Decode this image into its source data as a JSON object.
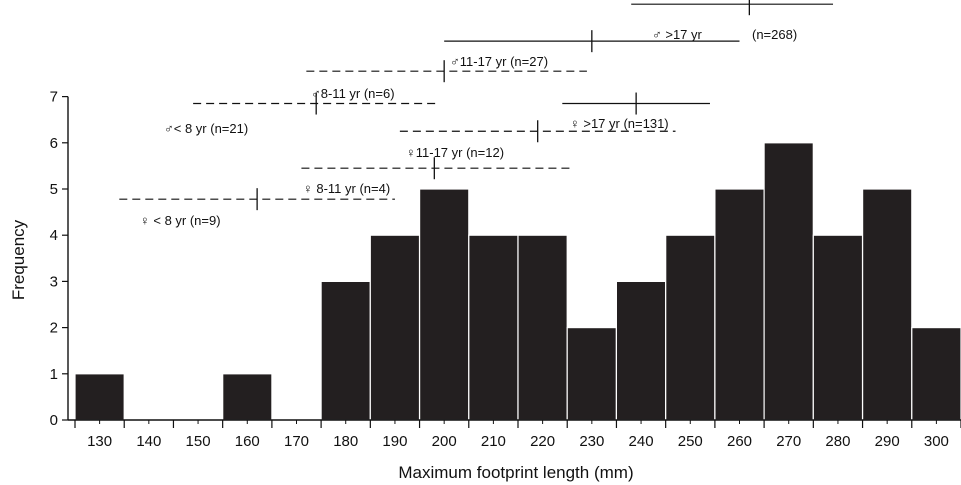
{
  "chart_data": {
    "type": "bar",
    "xlabel": "Maximum footprint length (mm)",
    "ylabel": "Frequency",
    "ylim": [
      0,
      7
    ],
    "xlim": [
      125,
      305
    ],
    "bin_width": 10,
    "x_ticks": [
      130,
      140,
      150,
      160,
      170,
      180,
      190,
      200,
      210,
      220,
      230,
      240,
      250,
      260,
      270,
      280,
      290,
      300
    ],
    "y_ticks": [
      0,
      1,
      2,
      3,
      4,
      5,
      6,
      7
    ],
    "categories": [
      "130",
      "140",
      "150",
      "160",
      "170",
      "180",
      "190",
      "200",
      "210",
      "220",
      "230",
      "240",
      "250",
      "260",
      "270",
      "280",
      "290",
      "300"
    ],
    "values": [
      1,
      0,
      0,
      1,
      0,
      3,
      4,
      5,
      4,
      4,
      2,
      3,
      4,
      5,
      6,
      4,
      5,
      2
    ],
    "bar_color": "#231f20",
    "grid": false,
    "legend": "none",
    "ranges": [
      {
        "label": "♀ < 8 yr (n=9)",
        "style": "dashed",
        "y": 4.78,
        "lo": 134,
        "hi": 190,
        "mean": 162
      },
      {
        "label": "♀ 8-11 yr (n=4)",
        "style": "dashed",
        "y": 5.45,
        "lo": 171,
        "hi": 226,
        "mean": 198
      },
      {
        "label": "♀11-17 yr (n=12)",
        "style": "dashed",
        "y": 6.25,
        "lo": 191,
        "hi": 247,
        "mean": 219
      },
      {
        "label": "♀ >17 yr (n=131)",
        "style": "solid",
        "y": 6.85,
        "lo": 224,
        "hi": 254,
        "mean": 239
      },
      {
        "label": "♂< 8 yr (n=21)",
        "style": "dashed",
        "y": 6.85,
        "lo": 149,
        "hi": 199,
        "mean": 174
      },
      {
        "label": "♂8-11 yr (n=6)",
        "style": "dashed",
        "y": 7.55,
        "lo": 172,
        "hi": 229,
        "mean": 200
      },
      {
        "label": "♂11-17 yr (n=27)",
        "style": "solid",
        "y": 8.2,
        "lo": 200,
        "hi": 260,
        "mean": 230
      },
      {
        "label": "♂ >17 yr",
        "style": "solid",
        "y": 9.0,
        "lo": 238,
        "hi": 279,
        "mean": 262
      },
      {
        "label": "(n=268)",
        "style": "none"
      }
    ]
  }
}
